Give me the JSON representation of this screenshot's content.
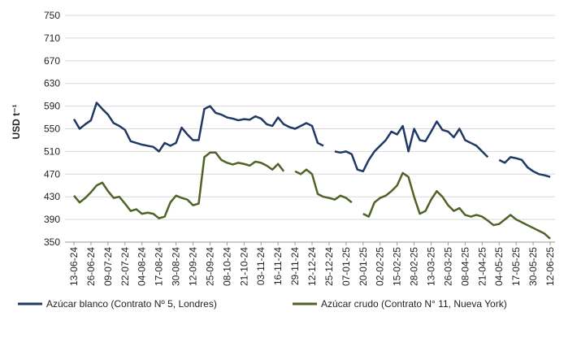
{
  "chart_data": {
    "type": "line",
    "y_label": "USD t⁻¹",
    "ylim": [
      350,
      750
    ],
    "yticks": [
      350,
      390,
      430,
      470,
      510,
      550,
      590,
      630,
      670,
      710,
      750
    ],
    "grid": true,
    "legend": "bottom",
    "categories": [
      "13-06-24",
      null,
      null,
      "26-06-24",
      null,
      null,
      "09-07-24",
      null,
      null,
      "22-07-24",
      null,
      null,
      "04-08-24",
      null,
      null,
      "17-08-24",
      null,
      null,
      "30-08-24",
      null,
      null,
      "12-09-24",
      null,
      null,
      "25-09-24",
      null,
      null,
      "08-10-24",
      null,
      null,
      "21-10-24",
      null,
      null,
      "03-11-24",
      null,
      null,
      "16-11-24",
      null,
      null,
      "29-11-24",
      null,
      null,
      "12-12-24",
      null,
      null,
      "25-12-24",
      null,
      null,
      "07-01-25",
      null,
      null,
      "20-01-25",
      null,
      null,
      "02-02-25",
      null,
      null,
      "15-02-25",
      null,
      null,
      "28-02-25",
      null,
      null,
      "13-03-25",
      null,
      null,
      "26-03-25",
      null,
      null,
      "08-04-25",
      null,
      null,
      "21-04-25",
      null,
      null,
      "04-05-25",
      null,
      null,
      "17-05-25",
      null,
      null,
      "30-05-25",
      null,
      null,
      "12-06-25"
    ],
    "series": [
      {
        "name": "Azúcar blanco (Contrato Nº 5, Londres)",
        "color": "#1f3864",
        "values": [
          567,
          550,
          558,
          565,
          596,
          585,
          575,
          560,
          555,
          548,
          528,
          525,
          522,
          520,
          518,
          510,
          525,
          520,
          525,
          552,
          540,
          530,
          530,
          585,
          590,
          578,
          575,
          570,
          568,
          565,
          567,
          566,
          572,
          568,
          558,
          555,
          570,
          558,
          553,
          550,
          555,
          560,
          555,
          525,
          520,
          null,
          510,
          508,
          510,
          505,
          478,
          475,
          495,
          510,
          520,
          530,
          545,
          540,
          555,
          510,
          550,
          530,
          528,
          545,
          563,
          548,
          545,
          535,
          550,
          530,
          525,
          520,
          510,
          500,
          null,
          495,
          490,
          500,
          498,
          495,
          482,
          475,
          470,
          468,
          465
        ]
      },
      {
        "name": "Azúcar crudo (Contrato N° 11, Nueva York)",
        "color": "#4f6228",
        "values": [
          432,
          420,
          428,
          438,
          450,
          455,
          440,
          428,
          430,
          418,
          405,
          408,
          400,
          402,
          400,
          392,
          395,
          420,
          432,
          428,
          425,
          415,
          418,
          500,
          508,
          508,
          495,
          490,
          487,
          490,
          488,
          485,
          492,
          490,
          485,
          478,
          488,
          475,
          null,
          475,
          470,
          478,
          470,
          435,
          430,
          428,
          425,
          432,
          428,
          420,
          null,
          400,
          395,
          420,
          428,
          432,
          440,
          450,
          472,
          465,
          430,
          400,
          405,
          425,
          440,
          430,
          415,
          405,
          410,
          398,
          395,
          398,
          395,
          388,
          380,
          382,
          390,
          398,
          390,
          385,
          380,
          375,
          370,
          365,
          356
        ]
      }
    ]
  }
}
